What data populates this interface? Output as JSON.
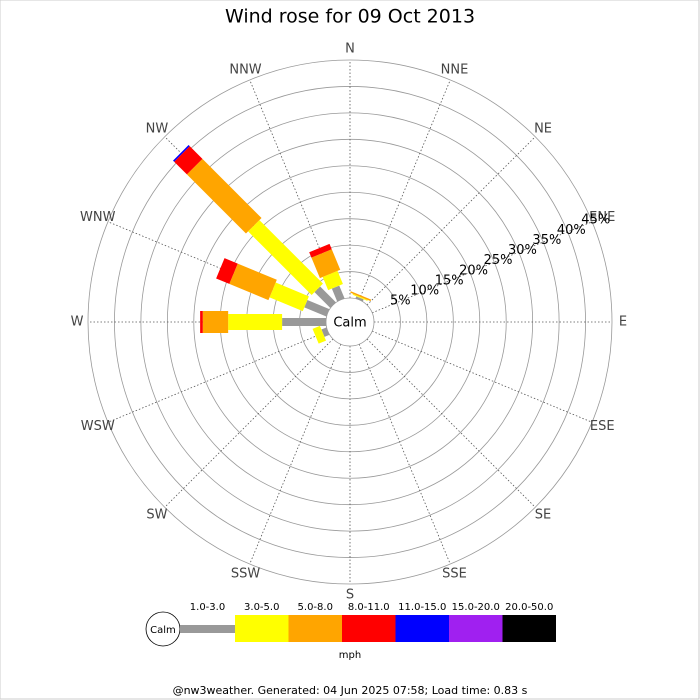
{
  "chart_data": {
    "type": "wind_rose",
    "title": "Wind rose for 09 Oct 2013",
    "directions": [
      "N",
      "NNE",
      "NE",
      "ENE",
      "E",
      "ESE",
      "SE",
      "SSE",
      "S",
      "SSW",
      "SW",
      "WSW",
      "W",
      "WNW",
      "NW",
      "NNW"
    ],
    "center_label": "Calm",
    "rlim": [
      0,
      45
    ],
    "rticks": [
      {
        "value": 5,
        "label": "5%"
      },
      {
        "value": 10,
        "label": "10%"
      },
      {
        "value": 15,
        "label": "15%"
      },
      {
        "value": 20,
        "label": "20%"
      },
      {
        "value": 25,
        "label": "25%"
      },
      {
        "value": 30,
        "label": "30%"
      },
      {
        "value": 35,
        "label": "35%"
      },
      {
        "value": 40,
        "label": "40%"
      },
      {
        "value": 45,
        "label": "45%"
      }
    ],
    "series": [
      {
        "name": "1.0-3.0",
        "color": "#999999",
        "values": [
          0,
          0.4,
          0,
          0,
          0,
          0,
          0,
          0,
          0,
          0,
          0,
          1.0,
          8.3,
          4.5,
          4.2,
          2.6
        ]
      },
      {
        "name": "3.0-5.0",
        "color": "#ffff00",
        "values": [
          0,
          0.2,
          0,
          0,
          0,
          0,
          0,
          0,
          0,
          0,
          0,
          1.5,
          10.2,
          6.8,
          17.0,
          2.7
        ]
      },
      {
        "name": "5.0-8.0",
        "color": "#ffa500",
        "values": [
          0,
          0.3,
          0,
          0,
          0,
          0,
          0,
          0,
          0,
          0,
          0,
          0,
          4.8,
          8.0,
          15.8,
          4.2
        ]
      },
      {
        "name": "8.0-11.0",
        "color": "#ff0000",
        "values": [
          0,
          0,
          0,
          0,
          0,
          0,
          0,
          0,
          0,
          0,
          0,
          0,
          0.5,
          2.7,
          3.4,
          1.1
        ]
      },
      {
        "name": "11.0-15.0",
        "color": "#0000ff",
        "values": [
          0,
          0,
          0,
          0,
          0,
          0,
          0,
          0,
          0,
          0,
          0,
          0,
          0,
          0,
          0.3,
          0
        ]
      },
      {
        "name": "15.0-20.0",
        "color": "#a020f0",
        "values": [
          0,
          0,
          0,
          0,
          0,
          0,
          0,
          0,
          0,
          0,
          0,
          0,
          0,
          0,
          0,
          0
        ]
      },
      {
        "name": "20.0-50.0",
        "color": "#000000",
        "values": [
          0,
          0,
          0,
          0,
          0,
          0,
          0,
          0,
          0,
          0,
          0,
          0,
          0,
          0,
          0,
          0
        ]
      }
    ],
    "unit": "mph",
    "footer": "@nw3weather. Generated: 04 Jun 2025 07:58; Load time: 0.83 s"
  }
}
